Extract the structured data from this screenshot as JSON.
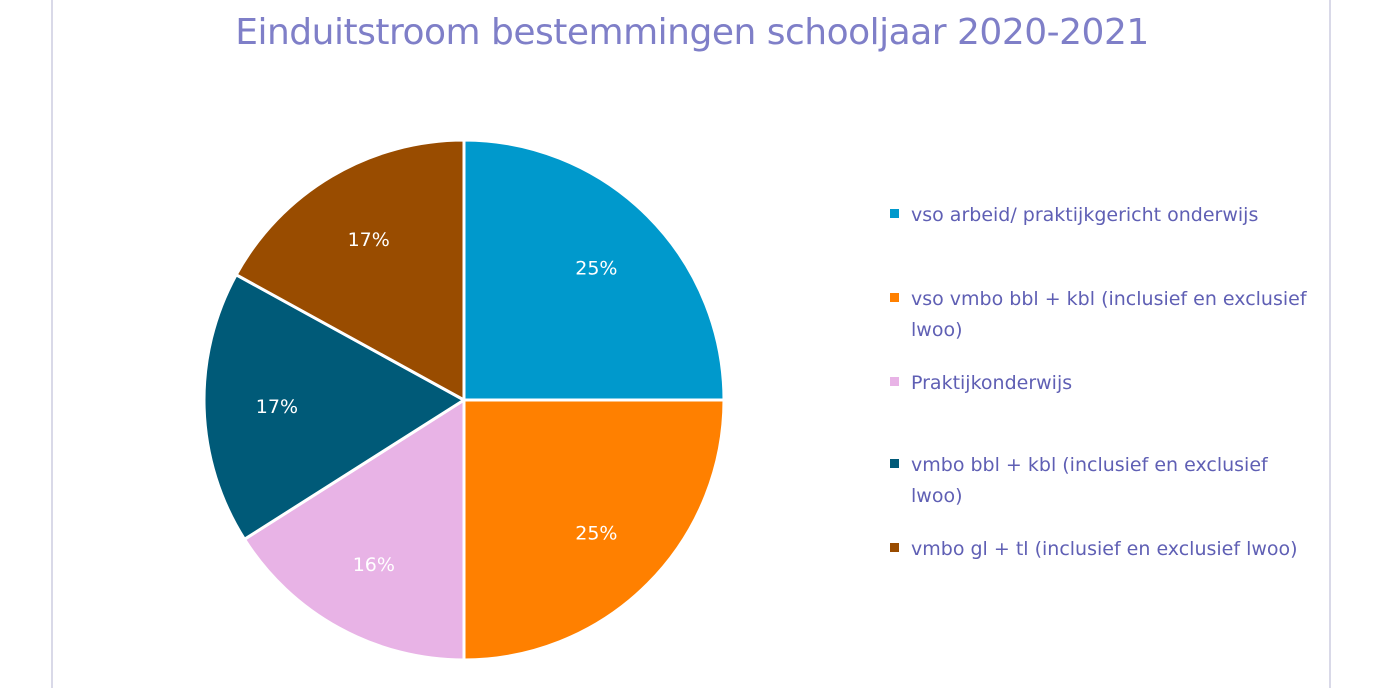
{
  "chart_data": {
    "type": "pie",
    "title": "Einduitstroom bestemmingen schooljaar 2020-2021",
    "slices": [
      {
        "label": "vso arbeid/ praktijkgericht onderwijs",
        "value": 25,
        "value_label": "25%",
        "color": "#0099cc"
      },
      {
        "label": "vso vmbo bbl + kbl (inclusief en exclusief lwoo)",
        "value": 25,
        "value_label": "25%",
        "color": "#ff8000"
      },
      {
        "label": "Praktijkonderwijs",
        "value": 16,
        "value_label": "16%",
        "color": "#e8b3e6"
      },
      {
        "label": "vmbo bbl + kbl (inclusief en exclusief lwoo)",
        "value": 17,
        "value_label": "17%",
        "color": "#005a78"
      },
      {
        "label": "vmbo gl + tl (inclusief en exclusief lwoo)",
        "value": 17,
        "value_label": "17%",
        "color": "#994c00"
      }
    ],
    "legend_position": "right",
    "label_color": "#ffffff"
  }
}
